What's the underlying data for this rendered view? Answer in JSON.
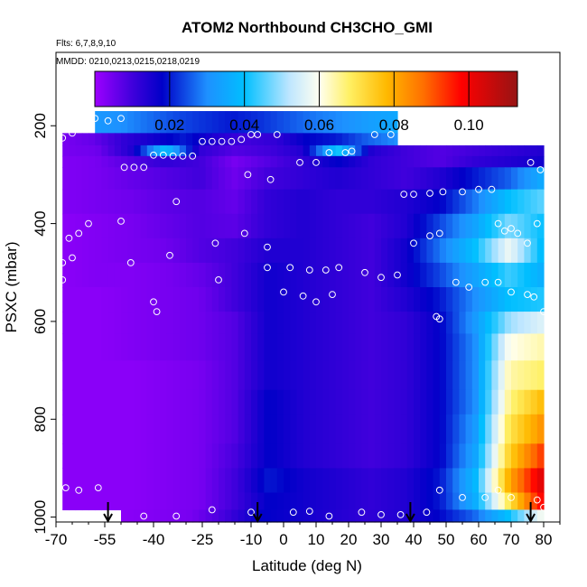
{
  "chart_data": {
    "type": "heatmap",
    "title": "ATOM2 Northbound CH3CHO_GMI",
    "flights_note": "Flts: 6,7,8,9,10",
    "dates_note": "MMDD: 0210,0213,0215,0218,0219",
    "xlabel": "Latitude (deg N)",
    "ylabel": "PSXC (mbar)",
    "xlim": [
      -70,
      85
    ],
    "ylim": [
      1010,
      50
    ],
    "y_reversed": true,
    "x_ticks": [
      -70,
      -55,
      -40,
      -25,
      -10,
      0,
      10,
      20,
      30,
      40,
      50,
      60,
      70,
      80
    ],
    "x_tick_labels": [
      "-70",
      "-55",
      "-40",
      "-25",
      "-10",
      "0",
      "10",
      "20",
      "30",
      "40",
      "50",
      "60",
      "70",
      "80"
    ],
    "y_ticks": [
      200,
      400,
      600,
      800,
      1000
    ],
    "y_tick_labels": [
      "200",
      "400",
      "600",
      "800",
      "1000"
    ],
    "colorbar": {
      "range": [
        0,
        0.113
      ],
      "ticks": [
        0.02,
        0.04,
        0.06,
        0.08,
        0.1
      ],
      "tick_labels": [
        "0.02",
        "0.04",
        "0.06",
        "0.08",
        "0.10"
      ]
    },
    "arrow_latitudes": [
      -54,
      -8,
      39,
      76
    ],
    "pressure_bands": [
      {
        "p": [
          170,
          215
        ],
        "x": [
          -58,
          35
        ],
        "v": [
          0.032,
          0.03,
          0.027,
          0.024,
          0.022,
          0.02,
          0.022,
          0.025,
          0.028,
          0.03,
          0.033,
          0.035
        ]
      },
      {
        "p": [
          215,
          240
        ],
        "x": [
          -68,
          35
        ],
        "v": [
          0.004,
          0.006,
          0.012,
          0.016,
          0.02,
          0.014,
          0.01,
          0.012,
          0.018,
          0.02,
          0.026,
          0.03
        ]
      },
      {
        "p": [
          240,
          262
        ],
        "x": [
          -68,
          80
        ],
        "v": [
          0.004,
          0.005,
          0.014,
          0.04,
          0.012,
          0.008,
          0.01,
          0.014,
          0.042,
          0.014,
          0.01,
          0.008,
          0.01,
          0.012,
          0.014
        ]
      },
      {
        "p": [
          262,
          285
        ],
        "x": [
          -68,
          80
        ],
        "v": [
          0.003,
          0.004,
          0.008,
          0.012,
          0.01,
          0.004,
          0.008,
          0.012,
          0.018,
          0.012,
          0.01,
          0.008,
          0.012,
          0.014,
          0.016
        ]
      },
      {
        "p": [
          285,
          330
        ],
        "x": [
          -68,
          80
        ],
        "v": [
          0.003,
          0.004,
          0.006,
          0.008,
          0.01,
          0.005,
          0.01,
          0.012,
          0.014,
          0.012,
          0.01,
          0.014,
          0.02,
          0.026,
          0.036
        ]
      },
      {
        "p": [
          330,
          380
        ],
        "x": [
          -68,
          80
        ],
        "v": [
          0.003,
          0.004,
          0.005,
          0.007,
          0.008,
          0.006,
          0.012,
          0.014,
          0.012,
          0.012,
          0.014,
          0.018,
          0.028,
          0.04,
          0.046
        ]
      },
      {
        "p": [
          380,
          430
        ],
        "x": [
          -68,
          80
        ],
        "v": [
          0.002,
          0.003,
          0.004,
          0.006,
          0.008,
          0.007,
          0.012,
          0.014,
          0.012,
          0.01,
          0.014,
          0.024,
          0.034,
          0.048,
          0.04
        ]
      },
      {
        "p": [
          430,
          480
        ],
        "x": [
          -68,
          80
        ],
        "v": [
          0.002,
          0.003,
          0.004,
          0.005,
          0.008,
          0.01,
          0.014,
          0.014,
          0.012,
          0.01,
          0.016,
          0.028,
          0.04,
          0.058,
          0.038
        ]
      },
      {
        "p": [
          480,
          530
        ],
        "x": [
          -68,
          80
        ],
        "v": [
          0.002,
          0.003,
          0.003,
          0.004,
          0.006,
          0.01,
          0.016,
          0.014,
          0.012,
          0.01,
          0.016,
          0.024,
          0.034,
          0.044,
          0.036
        ]
      },
      {
        "p": [
          530,
          580
        ],
        "x": [
          -68,
          80
        ],
        "v": [
          0.002,
          0.002,
          0.003,
          0.004,
          0.005,
          0.01,
          0.016,
          0.014,
          0.012,
          0.01,
          0.014,
          0.02,
          0.03,
          0.04,
          0.042
        ]
      },
      {
        "p": [
          580,
          625
        ],
        "x": [
          -68,
          80
        ],
        "v": [
          0.002,
          0.002,
          0.003,
          0.004,
          0.005,
          0.008,
          0.016,
          0.014,
          0.012,
          0.01,
          0.012,
          0.018,
          0.032,
          0.05,
          0.056
        ]
      },
      {
        "p": [
          625,
          680
        ],
        "x": [
          -68,
          80
        ],
        "v": [
          0.002,
          0.002,
          0.003,
          0.004,
          0.005,
          0.008,
          0.016,
          0.014,
          0.012,
          0.01,
          0.012,
          0.018,
          0.03,
          0.06,
          0.064
        ]
      },
      {
        "p": [
          680,
          740
        ],
        "x": [
          -68,
          80
        ],
        "v": [
          0.002,
          0.002,
          0.002,
          0.003,
          0.004,
          0.008,
          0.016,
          0.014,
          0.012,
          0.01,
          0.012,
          0.018,
          0.03,
          0.064,
          0.068
        ]
      },
      {
        "p": [
          740,
          790
        ],
        "x": [
          -68,
          80
        ],
        "v": [
          0.002,
          0.002,
          0.002,
          0.003,
          0.004,
          0.008,
          0.018,
          0.014,
          0.012,
          0.01,
          0.012,
          0.018,
          0.03,
          0.066,
          0.078
        ]
      },
      {
        "p": [
          790,
          850
        ],
        "x": [
          -68,
          80
        ],
        "v": [
          0.002,
          0.002,
          0.002,
          0.003,
          0.004,
          0.008,
          0.018,
          0.014,
          0.012,
          0.01,
          0.012,
          0.018,
          0.032,
          0.07,
          0.084
        ]
      },
      {
        "p": [
          850,
          900
        ],
        "x": [
          -68,
          80
        ],
        "v": [
          0.002,
          0.002,
          0.002,
          0.003,
          0.004,
          0.009,
          0.018,
          0.014,
          0.012,
          0.01,
          0.012,
          0.018,
          0.034,
          0.074,
          0.094
        ]
      },
      {
        "p": [
          900,
          950
        ],
        "x": [
          -68,
          80
        ],
        "v": [
          0.002,
          0.002,
          0.002,
          0.003,
          0.004,
          0.01,
          0.02,
          0.016,
          0.014,
          0.012,
          0.014,
          0.02,
          0.038,
          0.08,
          0.104
        ]
      },
      {
        "p": [
          950,
          985
        ],
        "x": [
          -68,
          80
        ],
        "v": [
          0.002,
          0.002,
          0.002,
          0.003,
          0.004,
          0.01,
          0.018,
          0.016,
          0.014,
          0.012,
          0.014,
          0.02,
          0.036,
          0.07,
          0.1
        ]
      },
      {
        "p": [
          985,
          1010
        ],
        "x": [
          -50,
          80
        ],
        "v": [
          0.002,
          0.003,
          0.004,
          0.01,
          0.018,
          0.016,
          0.014,
          0.012,
          0.014,
          0.018,
          0.026,
          0.04,
          0.06
        ]
      }
    ],
    "obs_points": [
      [
        -58,
        185
      ],
      [
        -54,
        190
      ],
      [
        -50,
        185
      ],
      [
        -68,
        225
      ],
      [
        -65,
        215
      ],
      [
        -60,
        205
      ],
      [
        -40,
        260
      ],
      [
        -37,
        260
      ],
      [
        -34,
        262
      ],
      [
        -31,
        262
      ],
      [
        -28,
        262
      ],
      [
        -25,
        232
      ],
      [
        -22,
        232
      ],
      [
        -19,
        232
      ],
      [
        -16,
        232
      ],
      [
        -13,
        228
      ],
      [
        -10,
        218
      ],
      [
        -8,
        218
      ],
      [
        5,
        275
      ],
      [
        10,
        275
      ],
      [
        14,
        255
      ],
      [
        19,
        255
      ],
      [
        21,
        252
      ],
      [
        28,
        218
      ],
      [
        33,
        218
      ],
      [
        -2,
        218
      ],
      [
        -49,
        285
      ],
      [
        -46,
        285
      ],
      [
        -43,
        285
      ],
      [
        -11,
        300
      ],
      [
        -4,
        310
      ],
      [
        -50,
        395
      ],
      [
        -33,
        355
      ],
      [
        -21,
        440
      ],
      [
        -12,
        420
      ],
      [
        -5,
        448
      ],
      [
        -66,
        430
      ],
      [
        -63,
        420
      ],
      [
        -60,
        400
      ],
      [
        -68,
        480
      ],
      [
        -65,
        470
      ],
      [
        -68,
        515
      ],
      [
        -47,
        480
      ],
      [
        -35,
        465
      ],
      [
        -20,
        515
      ],
      [
        -5,
        490
      ],
      [
        2,
        490
      ],
      [
        8,
        495
      ],
      [
        13,
        495
      ],
      [
        17,
        490
      ],
      [
        25,
        500
      ],
      [
        30,
        510
      ],
      [
        35,
        505
      ],
      [
        40,
        440
      ],
      [
        45,
        425
      ],
      [
        48,
        420
      ],
      [
        37,
        340
      ],
      [
        40,
        340
      ],
      [
        45,
        338
      ],
      [
        49,
        335
      ],
      [
        55,
        335
      ],
      [
        60,
        330
      ],
      [
        64,
        330
      ],
      [
        66,
        400
      ],
      [
        68,
        415
      ],
      [
        70,
        410
      ],
      [
        72,
        420
      ],
      [
        75,
        440
      ],
      [
        78,
        400
      ],
      [
        79,
        290
      ],
      [
        76,
        275
      ],
      [
        -40,
        560
      ],
      [
        -39,
        580
      ],
      [
        0,
        540
      ],
      [
        6,
        548
      ],
      [
        10,
        560
      ],
      [
        15,
        545
      ],
      [
        47,
        590
      ],
      [
        48,
        595
      ],
      [
        53,
        520
      ],
      [
        57,
        530
      ],
      [
        62,
        520
      ],
      [
        66,
        520
      ],
      [
        70,
        540
      ],
      [
        75,
        545
      ],
      [
        77,
        550
      ],
      [
        80,
        580
      ],
      [
        -67,
        940
      ],
      [
        -63,
        945
      ],
      [
        -57,
        940
      ],
      [
        48,
        945
      ],
      [
        55,
        960
      ],
      [
        62,
        960
      ],
      [
        66,
        945
      ],
      [
        70,
        960
      ],
      [
        78,
        965
      ],
      [
        80,
        980
      ],
      [
        -33,
        998
      ],
      [
        -22,
        985
      ],
      [
        -10,
        990
      ],
      [
        3,
        990
      ],
      [
        8,
        988
      ],
      [
        14,
        998
      ],
      [
        24,
        990
      ],
      [
        30,
        995
      ],
      [
        36,
        995
      ],
      [
        44,
        990
      ],
      [
        -54,
        998
      ],
      [
        -43,
        998
      ]
    ]
  }
}
